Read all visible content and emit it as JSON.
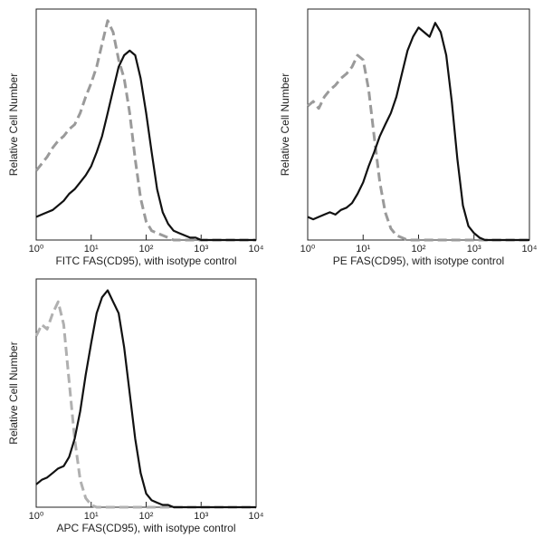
{
  "chart_data": [
    {
      "type": "line",
      "xlabel": "FITC FAS(CD95),  with isotype control",
      "ylabel": "Relative Cell Number",
      "xscale": "log",
      "xlim": [
        1,
        10000
      ],
      "ylim": [
        0,
        100
      ],
      "xticks": [
        {
          "value": 1,
          "label": "10⁰"
        },
        {
          "value": 10,
          "label": "10¹"
        },
        {
          "value": 100,
          "label": "10²"
        },
        {
          "value": 1000,
          "label": "10³"
        },
        {
          "value": 10000,
          "label": "10⁴"
        }
      ],
      "x": [
        1,
        1.26,
        1.58,
        2,
        2.51,
        3.16,
        3.98,
        5.01,
        6.31,
        7.94,
        10,
        12.6,
        15.8,
        20,
        25.1,
        31.6,
        39.8,
        50.1,
        63.1,
        79.4,
        100,
        126,
        158,
        200,
        251,
        316,
        398,
        501,
        631,
        794,
        1000,
        1260,
        1580,
        2000,
        2510,
        3160,
        3980,
        5010,
        6310,
        7940,
        10000
      ],
      "series": [
        {
          "color": "#9a9a9a",
          "line_style": "dashed",
          "values": [
            30,
            33,
            36,
            40,
            43,
            45,
            48,
            50,
            55,
            62,
            68,
            75,
            85,
            95,
            90,
            78,
            70,
            55,
            35,
            18,
            8,
            4,
            3,
            2,
            1,
            0,
            0,
            0,
            0,
            0,
            0,
            0,
            0,
            0,
            0,
            0,
            0,
            0,
            0,
            0,
            0
          ]
        },
        {
          "color": "#111111",
          "line_style": "solid",
          "values": [
            10,
            11,
            12,
            13,
            15,
            17,
            20,
            22,
            25,
            28,
            32,
            38,
            45,
            55,
            65,
            75,
            80,
            82,
            80,
            70,
            55,
            38,
            22,
            12,
            7,
            4,
            3,
            2,
            1,
            1,
            0,
            0,
            0,
            0,
            0,
            0,
            0,
            0,
            0,
            0,
            0
          ]
        }
      ]
    },
    {
      "type": "line",
      "xlabel": "PE FAS(CD95),  with isotype control",
      "ylabel": "Relative Cell Number",
      "xscale": "log",
      "xlim": [
        1,
        10000
      ],
      "ylim": [
        0,
        100
      ],
      "xticks": [
        {
          "value": 1,
          "label": "10⁰"
        },
        {
          "value": 10,
          "label": "10¹"
        },
        {
          "value": 100,
          "label": "10²"
        },
        {
          "value": 1000,
          "label": "10³"
        },
        {
          "value": 10000,
          "label": "10⁴"
        }
      ],
      "x": [
        1,
        1.26,
        1.58,
        2,
        2.51,
        3.16,
        3.98,
        5.01,
        6.31,
        7.94,
        10,
        12.6,
        15.8,
        20,
        25.1,
        31.6,
        39.8,
        50.1,
        63.1,
        79.4,
        100,
        126,
        158,
        200,
        251,
        316,
        398,
        501,
        631,
        794,
        1000,
        1260,
        1580,
        2000,
        2510,
        3160,
        3980,
        5010,
        6310,
        7940,
        10000
      ],
      "series": [
        {
          "color": "#9a9a9a",
          "line_style": "dashed",
          "values": [
            58,
            60,
            57,
            62,
            65,
            67,
            70,
            72,
            75,
            80,
            78,
            65,
            45,
            25,
            12,
            5,
            2,
            1,
            0,
            0,
            0,
            0,
            0,
            0,
            0,
            0,
            0,
            0,
            0,
            0,
            0,
            0,
            0,
            0,
            0,
            0,
            0,
            0,
            0,
            0,
            0
          ]
        },
        {
          "color": "#111111",
          "line_style": "solid",
          "values": [
            10,
            9,
            10,
            11,
            12,
            11,
            13,
            14,
            16,
            20,
            25,
            32,
            38,
            45,
            50,
            55,
            62,
            72,
            82,
            88,
            92,
            90,
            88,
            94,
            90,
            80,
            60,
            35,
            15,
            6,
            3,
            1,
            0,
            0,
            0,
            0,
            0,
            0,
            0,
            0,
            0
          ]
        }
      ]
    },
    {
      "type": "line",
      "xlabel": "APC FAS(CD95), with isotype control",
      "ylabel": "Relative Cell Number",
      "xscale": "log",
      "xlim": [
        1,
        10000
      ],
      "ylim": [
        0,
        100
      ],
      "xticks": [
        {
          "value": 1,
          "label": "10⁰"
        },
        {
          "value": 10,
          "label": "10¹"
        },
        {
          "value": 100,
          "label": "10²"
        },
        {
          "value": 1000,
          "label": "10³"
        },
        {
          "value": 10000,
          "label": "10⁴"
        }
      ],
      "x": [
        1,
        1.26,
        1.58,
        2,
        2.51,
        3.16,
        3.98,
        5.01,
        6.31,
        7.94,
        10,
        12.6,
        15.8,
        20,
        25.1,
        31.6,
        39.8,
        50.1,
        63.1,
        79.4,
        100,
        126,
        158,
        200,
        251,
        316,
        398,
        501,
        631,
        794,
        1000,
        1260,
        1580,
        2000,
        2510,
        3160,
        3980,
        5010,
        6310,
        7940,
        10000
      ],
      "series": [
        {
          "color": "#b0b0b0",
          "line_style": "dashed",
          "values": [
            75,
            80,
            78,
            85,
            90,
            80,
            55,
            30,
            12,
            4,
            1,
            0,
            0,
            0,
            0,
            0,
            0,
            0,
            0,
            0,
            0,
            0,
            0,
            0,
            0,
            0,
            0,
            0,
            0,
            0,
            0,
            0,
            0,
            0,
            0,
            0,
            0,
            0,
            0,
            0,
            0
          ]
        },
        {
          "color": "#111111",
          "line_style": "solid",
          "values": [
            10,
            12,
            13,
            15,
            17,
            18,
            22,
            30,
            42,
            58,
            72,
            85,
            92,
            95,
            90,
            85,
            70,
            50,
            30,
            15,
            6,
            3,
            2,
            1,
            1,
            0,
            0,
            0,
            0,
            0,
            0,
            0,
            0,
            0,
            0,
            0,
            0,
            0,
            0,
            0,
            0
          ]
        }
      ]
    }
  ]
}
